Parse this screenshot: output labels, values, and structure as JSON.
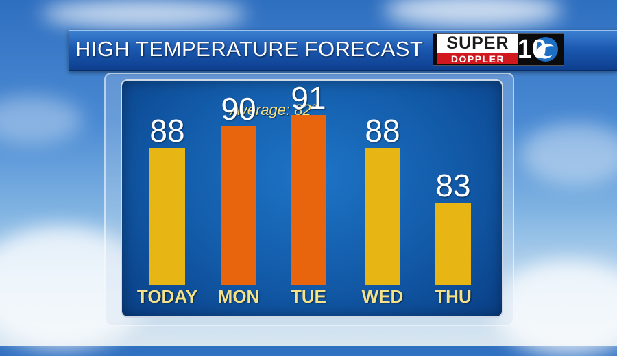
{
  "header": {
    "title": "HIGH TEMPERATURE FORECAST"
  },
  "logo": {
    "line1": "SUPER",
    "line2": "DOPPLER",
    "number": "10"
  },
  "chart_data": {
    "type": "bar",
    "categories": [
      "TODAY",
      "MON",
      "TUE",
      "WED",
      "THU"
    ],
    "values": [
      88,
      90,
      91,
      88,
      83
    ],
    "value_labels": [
      "88",
      "90",
      "91",
      "88",
      "83"
    ],
    "colors": [
      "#e8b614",
      "#e8650e",
      "#e8650e",
      "#e8b614",
      "#e8b614"
    ],
    "annotation": "Average: 82°"
  }
}
